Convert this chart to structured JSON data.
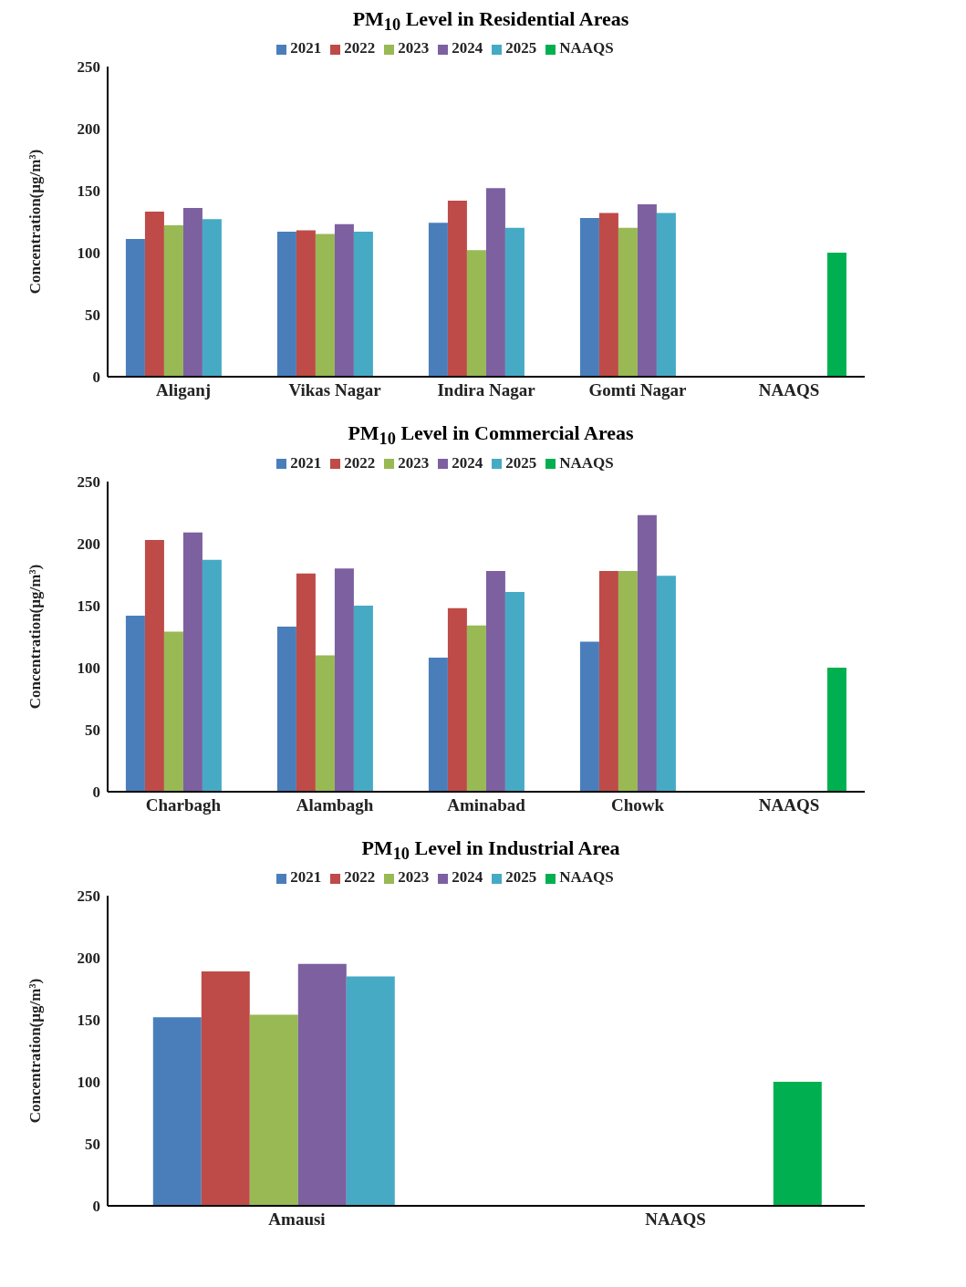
{
  "chart_data": [
    {
      "type": "bar",
      "title": "PM$_{10}$ Level in Residential Areas",
      "ylabel": "Concentration(µg/m³)",
      "categories": [
        "Aliganj",
        "Vikas Nagar",
        "Indira Nagar",
        "Gomti Nagar",
        "NAAQS"
      ],
      "ylim": [
        0,
        250
      ],
      "yticks": [
        0,
        50,
        100,
        150,
        200,
        250
      ],
      "grid": false,
      "legend": "top",
      "series": [
        {
          "name": "2021",
          "color": "#4a7ebb",
          "values": [
            111,
            117,
            124,
            128,
            null
          ]
        },
        {
          "name": "2022",
          "color": "#be4b48",
          "values": [
            133,
            118,
            142,
            132,
            null
          ]
        },
        {
          "name": "2023",
          "color": "#98b954",
          "values": [
            122,
            115,
            102,
            120,
            null
          ]
        },
        {
          "name": "2024",
          "color": "#7d60a0",
          "values": [
            136,
            123,
            152,
            139,
            null
          ]
        },
        {
          "name": "2025",
          "color": "#46aac5",
          "values": [
            127,
            117,
            120,
            132,
            null
          ]
        },
        {
          "name": "NAAQS",
          "color": "#00b050",
          "values": [
            null,
            null,
            null,
            null,
            100
          ]
        }
      ]
    },
    {
      "type": "bar",
      "title": "PM$_{10}$ Level in Commercial Areas",
      "ylabel": "Concentration(µg/m³)",
      "categories": [
        "Charbagh",
        "Alambagh",
        "Aminabad",
        "Chowk",
        "NAAQS"
      ],
      "ylim": [
        0,
        250
      ],
      "yticks": [
        0,
        50,
        100,
        150,
        200,
        250
      ],
      "grid": false,
      "legend": "top",
      "series": [
        {
          "name": "2021",
          "color": "#4a7ebb",
          "values": [
            142,
            133,
            108,
            121,
            null
          ]
        },
        {
          "name": "2022",
          "color": "#be4b48",
          "values": [
            203,
            176,
            148,
            178,
            null
          ]
        },
        {
          "name": "2023",
          "color": "#98b954",
          "values": [
            129,
            110,
            134,
            178,
            null
          ]
        },
        {
          "name": "2024",
          "color": "#7d60a0",
          "values": [
            209,
            180,
            178,
            223,
            null
          ]
        },
        {
          "name": "2025",
          "color": "#46aac5",
          "values": [
            187,
            150,
            161,
            174,
            null
          ]
        },
        {
          "name": "NAAQS",
          "color": "#00b050",
          "values": [
            null,
            null,
            null,
            null,
            100
          ]
        }
      ]
    },
    {
      "type": "bar",
      "title": "PM$_{10}$ Level in Industrial Area",
      "ylabel": "Concentration(µg/m³)",
      "categories": [
        "Amausi",
        "NAAQS"
      ],
      "ylim": [
        0,
        250
      ],
      "yticks": [
        0,
        50,
        100,
        150,
        200,
        250
      ],
      "grid": false,
      "legend": "top",
      "series": [
        {
          "name": "2021",
          "color": "#4a7ebb",
          "values": [
            152,
            null
          ]
        },
        {
          "name": "2022",
          "color": "#be4b48",
          "values": [
            189,
            null
          ]
        },
        {
          "name": "2023",
          "color": "#98b954",
          "values": [
            154,
            null
          ]
        },
        {
          "name": "2024",
          "color": "#7d60a0",
          "values": [
            195,
            null
          ]
        },
        {
          "name": "2025",
          "color": "#46aac5",
          "values": [
            185,
            null
          ]
        },
        {
          "name": "NAAQS",
          "color": "#00b050",
          "values": [
            null,
            100
          ]
        }
      ]
    }
  ]
}
